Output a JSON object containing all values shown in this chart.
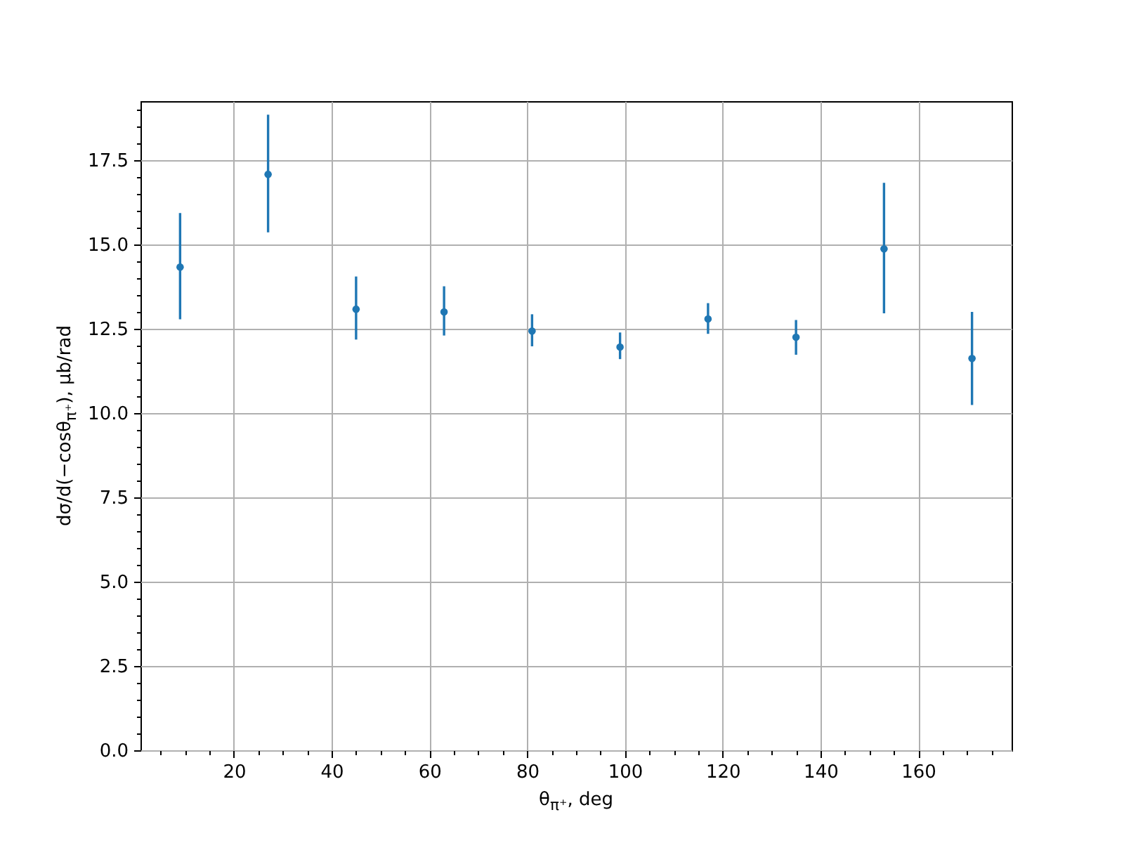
{
  "chart_data": {
    "type": "scatter",
    "xlabel": "θ$_{π⁺}$, deg",
    "ylabel": "dσ/d(−cosθ$_{π⁺}$), μb/rad",
    "x": [
      9,
      27,
      45,
      63,
      81,
      99,
      117,
      135,
      153,
      171
    ],
    "series": [
      {
        "color": "#1f77b4",
        "values": [
          14.33,
          17.08,
          13.08,
          13.0,
          12.43,
          11.96,
          12.79,
          12.25,
          14.87,
          11.62
        ],
        "errors": [
          [
            12.78,
            15.93
          ],
          [
            15.36,
            18.85
          ],
          [
            12.18,
            14.05
          ],
          [
            12.3,
            13.76
          ],
          [
            11.98,
            12.93
          ],
          [
            11.6,
            12.39
          ],
          [
            12.35,
            13.26
          ],
          [
            11.73,
            12.76
          ],
          [
            12.96,
            16.83
          ],
          [
            10.24,
            13.0
          ]
        ]
      }
    ],
    "xlim": [
      0.9,
      179.1
    ],
    "ylim": [
      0,
      19.25
    ],
    "xticks": [
      {
        "value": 5,
        "label": null
      },
      {
        "value": 10,
        "label": null
      },
      {
        "value": 15,
        "label": null
      },
      20,
      {
        "value": 25,
        "label": null
      },
      {
        "value": 30,
        "label": null
      },
      {
        "value": 35,
        "label": null
      },
      40,
      {
        "value": 45,
        "label": null
      },
      {
        "value": 50,
        "label": null
      },
      {
        "value": 55,
        "label": null
      },
      60,
      {
        "value": 65,
        "label": null
      },
      {
        "value": 70,
        "label": null
      },
      {
        "value": 75,
        "label": null
      },
      80,
      {
        "value": 85,
        "label": null
      },
      {
        "value": 90,
        "label": null
      },
      {
        "value": 95,
        "label": null
      },
      100,
      {
        "value": 105,
        "label": null
      },
      {
        "value": 110,
        "label": null
      },
      {
        "value": 115,
        "label": null
      },
      120,
      {
        "value": 125,
        "label": null
      },
      {
        "value": 130,
        "label": null
      },
      {
        "value": 135,
        "label": null
      },
      140,
      {
        "value": 145,
        "label": null
      },
      {
        "value": 150,
        "label": null
      },
      {
        "value": 155,
        "label": null
      },
      160,
      {
        "value": 165,
        "label": null
      },
      {
        "value": 170,
        "label": null
      },
      {
        "value": 175,
        "label": null
      }
    ],
    "yticks": [
      {
        "value": 0,
        "label": "0.0"
      },
      {
        "value": 0.5,
        "label": null
      },
      {
        "value": 1,
        "label": null
      },
      {
        "value": 1.5,
        "label": null
      },
      {
        "value": 2,
        "label": null
      },
      2.5,
      {
        "value": 3,
        "label": null
      },
      {
        "value": 3.5,
        "label": null
      },
      {
        "value": 4,
        "label": null
      },
      {
        "value": 4.5,
        "label": null
      },
      {
        "value": 5,
        "label": "5.0"
      },
      {
        "value": 5.5,
        "label": null
      },
      {
        "value": 6,
        "label": null
      },
      {
        "value": 6.5,
        "label": null
      },
      {
        "value": 7,
        "label": null
      },
      7.5,
      {
        "value": 8,
        "label": null
      },
      {
        "value": 8.5,
        "label": null
      },
      {
        "value": 9,
        "label": null
      },
      {
        "value": 9.5,
        "label": null
      },
      {
        "value": 10,
        "label": "10.0"
      },
      {
        "value": 10.5,
        "label": null
      },
      {
        "value": 11,
        "label": null
      },
      {
        "value": 11.5,
        "label": null
      },
      {
        "value": 12,
        "label": null
      },
      12.5,
      {
        "value": 13,
        "label": null
      },
      {
        "value": 13.5,
        "label": null
      },
      {
        "value": 14,
        "label": null
      },
      {
        "value": 14.5,
        "label": null
      },
      {
        "value": 15,
        "label": "15.0"
      },
      {
        "value": 15.5,
        "label": null
      },
      {
        "value": 16,
        "label": null
      },
      {
        "value": 16.5,
        "label": null
      },
      {
        "value": 17,
        "label": null
      },
      17.5,
      {
        "value": 18,
        "label": null
      },
      {
        "value": 18.5,
        "label": null
      },
      {
        "value": 19,
        "label": null
      }
    ],
    "grid": true,
    "marker": "circle"
  }
}
